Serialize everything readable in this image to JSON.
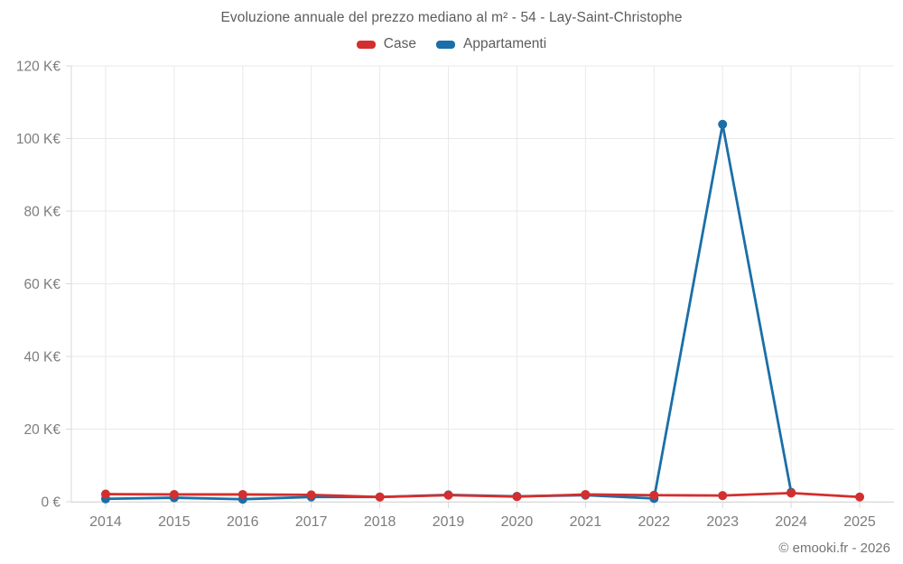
{
  "header": {
    "title": "Evoluzione annuale del prezzo mediano al m² - 54 - Lay-Saint-Christophe"
  },
  "legend": {
    "items": [
      {
        "label": "Case",
        "color": "#d32f2f"
      },
      {
        "label": "Appartamenti",
        "color": "#1a6fa8"
      }
    ]
  },
  "footer": {
    "copyright": "© emooki.fr - 2026"
  },
  "chart_data": {
    "type": "line",
    "title": "Evoluzione annuale del prezzo mediano al m² - 54 - Lay-Saint-Christophe",
    "categories": [
      "2014",
      "2015",
      "2016",
      "2017",
      "2018",
      "2019",
      "2020",
      "2021",
      "2022",
      "2023",
      "2024",
      "2025"
    ],
    "series": [
      {
        "name": "Case",
        "color": "#d32f2f",
        "values": [
          2.1,
          2.0,
          2.0,
          1.9,
          1.3,
          1.8,
          1.4,
          2.0,
          1.8,
          1.7,
          2.4,
          1.3
        ]
      },
      {
        "name": "Appartamenti",
        "color": "#1a6fa8",
        "values": [
          0.8,
          1.1,
          0.7,
          1.3,
          1.3,
          1.9,
          1.5,
          1.8,
          0.9,
          103.9,
          2.6,
          null
        ]
      }
    ],
    "xlabel": "",
    "ylabel": "",
    "unit": "K€ per m²",
    "ylim": [
      0,
      120
    ],
    "y_ticks": [
      0,
      20,
      40,
      60,
      80,
      100,
      120
    ],
    "y_tick_labels": [
      "0 €",
      "20 K€",
      "40 K€",
      "60 K€",
      "80 K€",
      "100 K€",
      "120 K€"
    ],
    "grid": true,
    "legend_position": "top"
  }
}
